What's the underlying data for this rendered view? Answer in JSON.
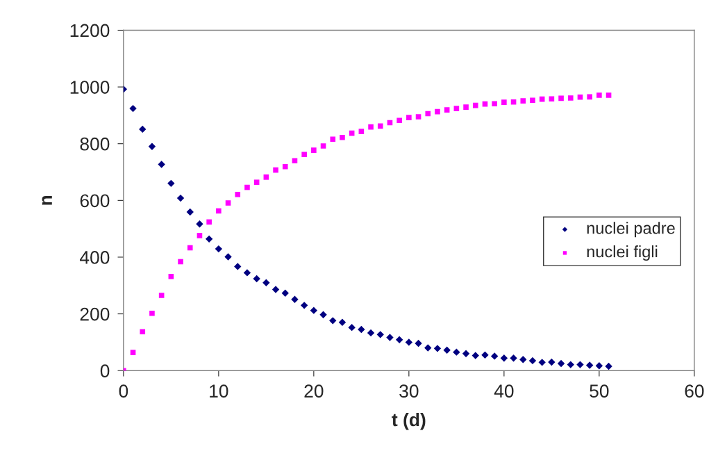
{
  "chart_data": {
    "type": "scatter",
    "xlabel": "t (d)",
    "ylabel": "n",
    "x": [
      0,
      1,
      2,
      3,
      4,
      5,
      6,
      7,
      8,
      9,
      10,
      11,
      12,
      13,
      14,
      15,
      16,
      17,
      18,
      19,
      20,
      21,
      22,
      23,
      24,
      25,
      26,
      27,
      28,
      29,
      30,
      31,
      32,
      33,
      34,
      35,
      36,
      37,
      38,
      39,
      40,
      41,
      42,
      43,
      44,
      45,
      46,
      47,
      48,
      49,
      50,
      51
    ],
    "series": [
      {
        "name": "nuclei padre",
        "color": "#000080",
        "marker": "diamond",
        "values": [
          992,
          924,
          851,
          790,
          727,
          660,
          608,
          559,
          517,
          464,
          429,
          401,
          367,
          345,
          324,
          310,
          286,
          273,
          251,
          230,
          212,
          197,
          176,
          170,
          152,
          145,
          133,
          127,
          117,
          109,
          100,
          96,
          80,
          78,
          72,
          65,
          60,
          53,
          55,
          51,
          44,
          44,
          39,
          35,
          29,
          30,
          25,
          21,
          21,
          19,
          17,
          15
        ]
      },
      {
        "name": "nuclei figli",
        "color": "#ff00ff",
        "marker": "square",
        "values": [
          0,
          64,
          137,
          202,
          265,
          332,
          384,
          433,
          476,
          524,
          563,
          591,
          621,
          646,
          664,
          682,
          707,
          719,
          740,
          762,
          777,
          792,
          816,
          822,
          837,
          843,
          859,
          862,
          874,
          882,
          892,
          895,
          906,
          913,
          919,
          924,
          929,
          935,
          940,
          941,
          946,
          947,
          951,
          953,
          957,
          958,
          960,
          961,
          964,
          965,
          971,
          971
        ]
      }
    ],
    "xlim": [
      0,
      60
    ],
    "xticks": [
      0,
      10,
      20,
      30,
      40,
      50,
      60
    ],
    "ylim": [
      0,
      1200
    ],
    "yticks": [
      0,
      200,
      400,
      600,
      800,
      1000,
      1200
    ],
    "grid": false,
    "legend": "right"
  }
}
